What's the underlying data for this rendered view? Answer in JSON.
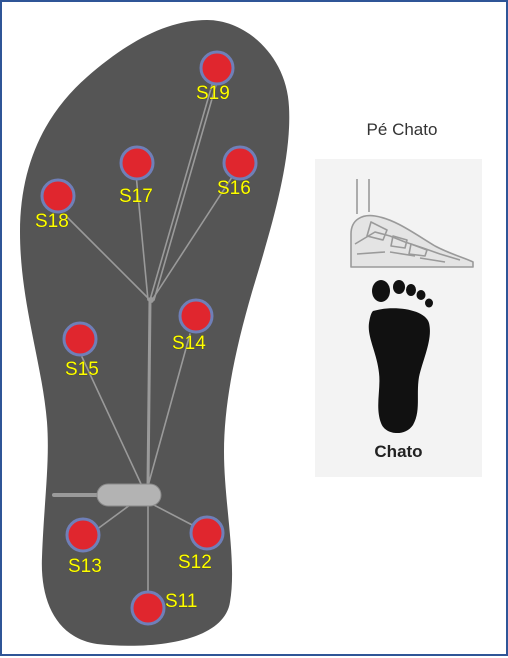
{
  "colors": {
    "frame": "#2f5597",
    "insole": "#555555",
    "sensor_fill": "#e0262e",
    "sensor_ring": "#6f7fb8",
    "label": "#ffff00",
    "wire": "#9a9a9a"
  },
  "sensors": [
    {
      "id": "s11",
      "label": "S11"
    },
    {
      "id": "s12",
      "label": "S12"
    },
    {
      "id": "s13",
      "label": "S13"
    },
    {
      "id": "s14",
      "label": "S14"
    },
    {
      "id": "s15",
      "label": "S15"
    },
    {
      "id": "s16",
      "label": "S16"
    },
    {
      "id": "s17",
      "label": "S17"
    },
    {
      "id": "s18",
      "label": "S18"
    },
    {
      "id": "s19",
      "label": "S19"
    }
  ],
  "side_panel": {
    "title": "Pé Chato",
    "caption": "Chato",
    "icons": [
      "flat-foot-skeleton-icon",
      "flat-footprint-icon"
    ]
  }
}
